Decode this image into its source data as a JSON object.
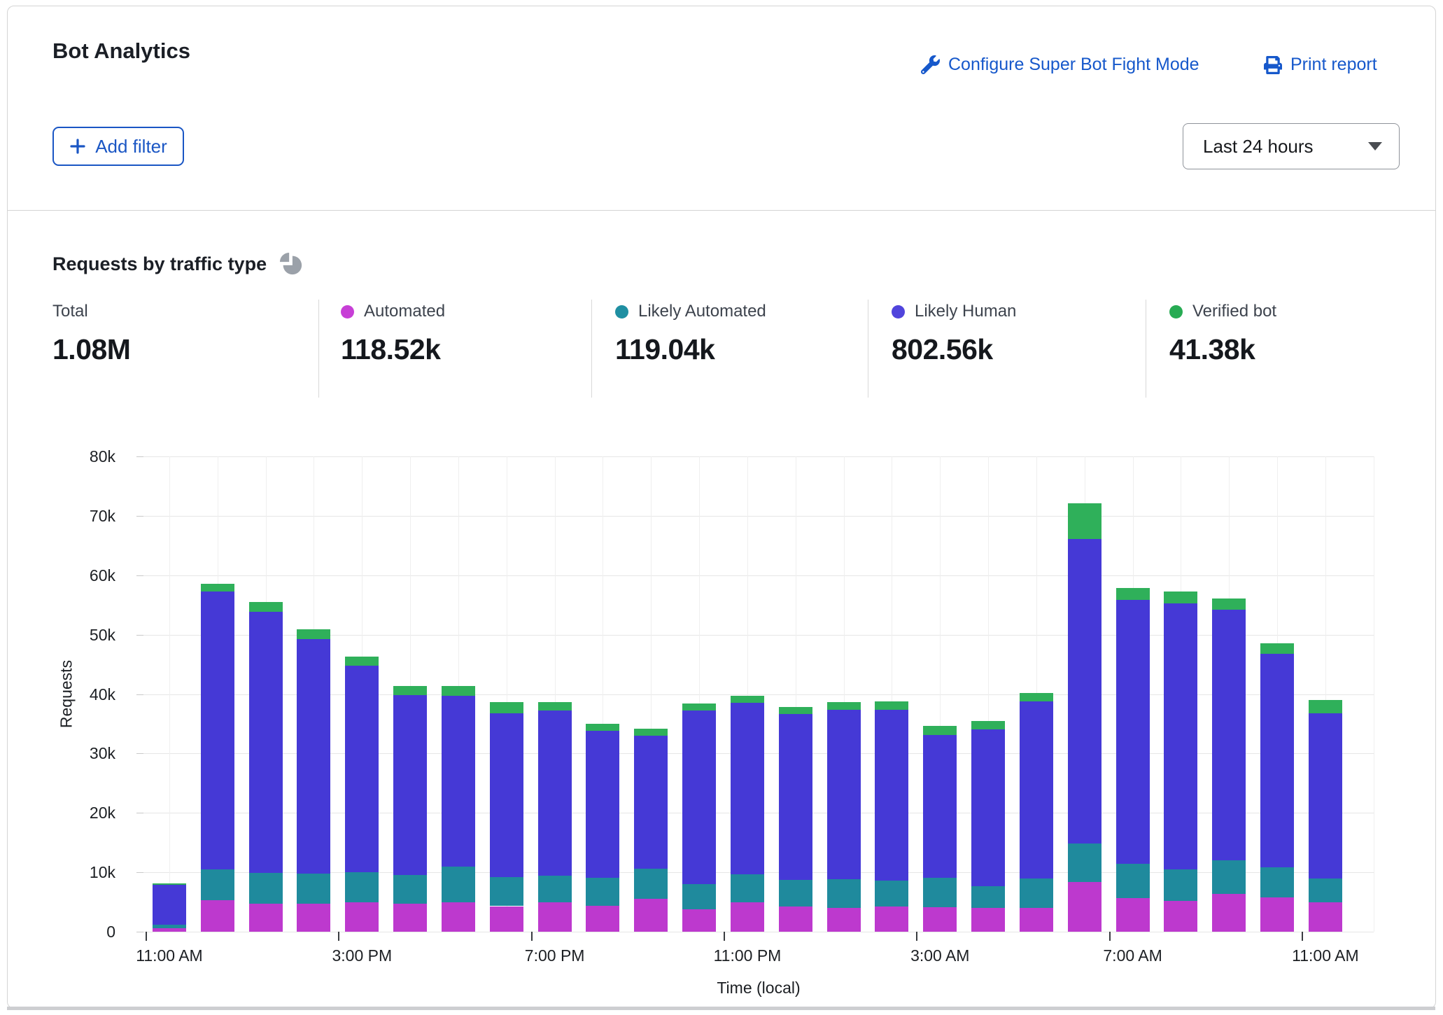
{
  "header": {
    "title": "Bot Analytics",
    "configure_link_label": "Configure Super Bot Fight Mode",
    "print_link_label": "Print report"
  },
  "filters": {
    "add_filter_label": "Add filter",
    "time_range_value": "Last 24 hours"
  },
  "icons": {
    "configure": "wrench-icon",
    "print": "printer-icon",
    "section": "pie-chart-icon",
    "add_filter": "plus-icon",
    "time_range": "chevron-down-icon"
  },
  "section": {
    "title": "Requests by traffic type"
  },
  "stats": [
    {
      "label": "Total",
      "value": "1.08M",
      "dot_color": null
    },
    {
      "label": "Automated",
      "value": "118.52k",
      "dot_color": "#c73fd6"
    },
    {
      "label": "Likely Automated",
      "value": "119.04k",
      "dot_color": "#1f8fa2"
    },
    {
      "label": "Likely Human",
      "value": "802.56k",
      "dot_color": "#5044dc"
    },
    {
      "label": "Verified bot",
      "value": "41.38k",
      "dot_color": "#27ab53"
    }
  ],
  "chart_data": {
    "type": "bar",
    "stacked": true,
    "title": "Requests by traffic type",
    "xlabel": "Time (local)",
    "ylabel": "Requests",
    "values_unit": "thousands of requests",
    "ylim": [
      0,
      80000
    ],
    "y_ticks": [
      "0",
      "10k",
      "20k",
      "30k",
      "40k",
      "50k",
      "60k",
      "70k",
      "80k"
    ],
    "grid": true,
    "categories": [
      "11:00 AM",
      "12:00 PM",
      "1:00 PM",
      "2:00 PM",
      "3:00 PM",
      "4:00 PM",
      "5:00 PM",
      "6:00 PM",
      "7:00 PM",
      "8:00 PM",
      "9:00 PM",
      "10:00 PM",
      "11:00 PM",
      "12:00 AM",
      "1:00 AM",
      "2:00 AM",
      "3:00 AM",
      "4:00 AM",
      "5:00 AM",
      "6:00 AM",
      "7:00 AM",
      "8:00 AM",
      "9:00 AM",
      "10:00 AM",
      "11:00 AM"
    ],
    "x_tick_positions": [
      0,
      4,
      8,
      12,
      16,
      20,
      24
    ],
    "x_tick_labels": [
      "11:00 AM",
      "3:00 PM",
      "7:00 PM",
      "11:00 PM",
      "3:00 AM",
      "7:00 AM",
      "11:00 AM"
    ],
    "series": [
      {
        "name": "Automated",
        "color": "#bd39ce",
        "values": [
          0.6,
          5.3,
          4.7,
          4.7,
          5.0,
          4.7,
          5.0,
          4.3,
          4.9,
          4.4,
          5.5,
          3.8,
          4.9,
          4.3,
          4.0,
          4.2,
          4.1,
          4.0,
          4.0,
          8.4,
          5.6,
          5.2,
          6.4,
          5.8,
          4.9
        ]
      },
      {
        "name": "Likely Automated",
        "color": "#1f8a9d",
        "values": [
          0.6,
          5.2,
          5.2,
          5.1,
          5.0,
          4.9,
          5.9,
          4.9,
          4.5,
          4.7,
          5.1,
          4.2,
          4.8,
          4.4,
          4.8,
          4.4,
          5.0,
          3.7,
          5.0,
          6.5,
          5.8,
          5.3,
          5.6,
          5.0,
          4.1
        ]
      },
      {
        "name": "Likely Human",
        "color": "#4539d6",
        "values": [
          6.7,
          46.8,
          44.0,
          39.4,
          34.8,
          30.2,
          28.8,
          27.6,
          27.8,
          24.7,
          22.4,
          29.2,
          28.8,
          27.9,
          28.5,
          28.8,
          24.0,
          26.4,
          29.8,
          51.2,
          44.5,
          44.8,
          42.2,
          36.0,
          27.8
        ]
      },
      {
        "name": "Verified bot",
        "color": "#2fb05a",
        "values": [
          0.2,
          1.3,
          1.6,
          1.7,
          1.5,
          1.5,
          1.7,
          1.8,
          1.5,
          1.2,
          1.2,
          1.2,
          1.2,
          1.2,
          1.3,
          1.4,
          1.5,
          1.4,
          1.4,
          6.0,
          1.9,
          2.0,
          1.9,
          1.8,
          2.2
        ]
      }
    ],
    "legend_position": "top stats row"
  }
}
